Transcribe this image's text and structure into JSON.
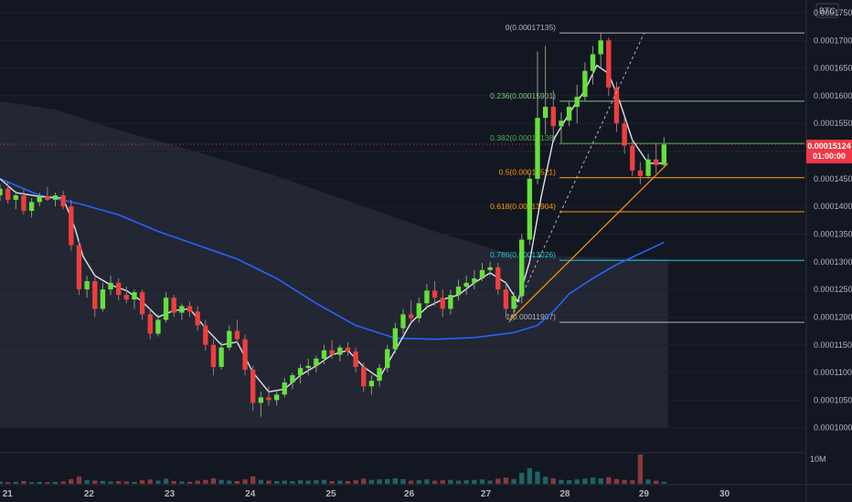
{
  "chart_data": {
    "type": "candlestick",
    "currency_badge": "BTC",
    "y_ticks": [
      "0.00017500",
      "0.00017000",
      "0.00016500",
      "0.00016000",
      "0.00015500",
      "0.00015000",
      "0.00014500",
      "0.00014000",
      "0.00013500",
      "0.00013000",
      "0.00012500",
      "0.00012000",
      "0.00011500",
      "0.00011000",
      "0.00010500",
      "0.00010000"
    ],
    "ylim": [
      9.55e-05,
      0.0001773
    ],
    "x_labels": [
      {
        "label": "21",
        "t": 0.5
      },
      {
        "label": "22",
        "t": 10.8
      },
      {
        "label": "23",
        "t": 21.0
      },
      {
        "label": "24",
        "t": 31.2
      },
      {
        "label": "25",
        "t": 41.4
      },
      {
        "label": "26",
        "t": 51.3
      },
      {
        "label": "27",
        "t": 61.0
      },
      {
        "label": "28",
        "t": 71.0
      },
      {
        "label": "29",
        "t": 81.0
      },
      {
        "label": "30",
        "t": 91.2
      }
    ],
    "xlim": [
      0,
      102
    ],
    "last_price": {
      "label": "0.00015124",
      "countdown": "01:00:00",
      "value": 0.00015124,
      "color": "#f23645"
    },
    "fibonacci": [
      {
        "label": "0(0.00017135)",
        "value": 0.00017135,
        "color": "#b2b5be"
      },
      {
        "label": "0.236(0.00015901)",
        "value": 0.00015901,
        "color": "#81c784"
      },
      {
        "label": "0.382(0.00015138)",
        "value": 0.00015138,
        "color": "#4caf50"
      },
      {
        "label": "0.5(0.00014521)",
        "value": 0.00014521,
        "color": "#ff9800"
      },
      {
        "label": "0.618(0.00013904)",
        "value": 0.00013904,
        "color": "#ff9800"
      },
      {
        "label": "0.786(0.00013026)",
        "value": 0.00013026,
        "color": "#26c6da"
      },
      {
        "label": "1(0.00011907)",
        "value": 0.00011907,
        "color": "#b2b5be"
      }
    ],
    "volume_label": "10M",
    "candles": [
      [
        0.0,
        0.000142,
        0.000144,
        0.000141,
        0.0001432
      ],
      [
        1.0,
        0.0001432,
        0.0001445,
        0.0001405,
        0.0001412
      ],
      [
        2.0,
        0.0001412,
        0.0001428,
        0.0001395,
        0.000142
      ],
      [
        3.0,
        0.000142,
        0.000143,
        0.0001385,
        0.0001392
      ],
      [
        4.0,
        0.0001392,
        0.0001415,
        0.000138,
        0.0001408
      ],
      [
        5.0,
        0.0001408,
        0.0001425,
        0.00014,
        0.0001418
      ],
      [
        6.0,
        0.0001418,
        0.0001435,
        0.000141,
        0.0001412
      ],
      [
        7.0,
        0.0001412,
        0.0001425,
        0.00014,
        0.000142
      ],
      [
        8.0,
        0.000142,
        0.0001428,
        0.0001395,
        0.00014
      ],
      [
        9.0,
        0.00014,
        0.0001412,
        0.000132,
        0.000133
      ],
      [
        10.0,
        0.000133,
        0.000134,
        0.000124,
        0.000125
      ],
      [
        11.0,
        0.000125,
        0.0001275,
        0.0001235,
        0.0001265
      ],
      [
        12.0,
        0.0001265,
        0.0001272,
        0.00012,
        0.0001215
      ],
      [
        13.0,
        0.0001215,
        0.0001262,
        0.000121,
        0.000125
      ],
      [
        14.0,
        0.000125,
        0.0001275,
        0.000124,
        0.0001262
      ],
      [
        15.0,
        0.0001262,
        0.000127,
        0.000123,
        0.000124
      ],
      [
        16.0,
        0.000124,
        0.0001255,
        0.0001225,
        0.0001232
      ],
      [
        17.0,
        0.0001232,
        0.000125,
        0.0001215,
        0.0001245
      ],
      [
        18.0,
        0.0001245,
        0.000125,
        0.0001195,
        0.0001205
      ],
      [
        19.0,
        0.0001205,
        0.0001215,
        0.000116,
        0.000117
      ],
      [
        20.0,
        0.000117,
        0.0001205,
        0.0001165,
        0.0001195
      ],
      [
        21.0,
        0.0001195,
        0.0001245,
        0.000119,
        0.0001235
      ],
      [
        22.0,
        0.0001235,
        0.000124,
        0.00012,
        0.0001208
      ],
      [
        23.0,
        0.0001208,
        0.0001225,
        0.0001195,
        0.000122
      ],
      [
        24.0,
        0.000122,
        0.0001228,
        0.00012,
        0.000121
      ],
      [
        25.0,
        0.000121,
        0.000122,
        0.0001175,
        0.0001185
      ],
      [
        26.0,
        0.0001185,
        0.0001195,
        0.000114,
        0.000115
      ],
      [
        27.0,
        0.000115,
        0.000116,
        0.0001095,
        0.000111
      ],
      [
        28.0,
        0.000111,
        0.0001155,
        0.0001105,
        0.0001145
      ],
      [
        29.0,
        0.0001145,
        0.0001185,
        0.000114,
        0.0001175
      ],
      [
        30.0,
        0.0001175,
        0.0001195,
        0.000115,
        0.000116
      ],
      [
        31.0,
        0.000116,
        0.0001168,
        0.0001095,
        0.0001105
      ],
      [
        32.0,
        0.0001105,
        0.0001112,
        0.000103,
        0.0001045
      ],
      [
        33.0,
        0.0001045,
        0.0001065,
        0.000102,
        0.0001055
      ],
      [
        34.0,
        0.0001055,
        0.0001075,
        0.000104,
        0.000105
      ],
      [
        35.0,
        0.000105,
        0.0001065,
        0.000104,
        0.000106
      ],
      [
        36.0,
        0.000106,
        0.000109,
        0.0001055,
        0.0001082
      ],
      [
        37.0,
        0.0001082,
        0.00011,
        0.000107,
        0.0001095
      ],
      [
        38.0,
        0.0001095,
        0.0001115,
        0.000108,
        0.0001108
      ],
      [
        39.0,
        0.0001108,
        0.0001125,
        0.0001095,
        0.0001112
      ],
      [
        40.0,
        0.0001112,
        0.000113,
        0.00011,
        0.0001125
      ],
      [
        41.0,
        0.0001125,
        0.000115,
        0.0001115,
        0.000114
      ],
      [
        42.0,
        0.000114,
        0.0001158,
        0.0001125,
        0.0001132
      ],
      [
        43.0,
        0.0001132,
        0.000115,
        0.000112,
        0.0001145
      ],
      [
        44.0,
        0.0001145,
        0.0001155,
        0.000113,
        0.0001138
      ],
      [
        45.0,
        0.0001138,
        0.0001145,
        0.00011,
        0.000111
      ],
      [
        46.0,
        0.000111,
        0.0001118,
        0.0001065,
        0.0001075
      ],
      [
        47.0,
        0.0001075,
        0.0001095,
        0.000106,
        0.0001085
      ],
      [
        48.0,
        0.0001085,
        0.0001115,
        0.0001075,
        0.0001108
      ],
      [
        49.0,
        0.0001108,
        0.000115,
        0.00011,
        0.0001142
      ],
      [
        50.0,
        0.0001142,
        0.000119,
        0.0001135,
        0.000118
      ],
      [
        51.0,
        0.000118,
        0.0001215,
        0.000117,
        0.0001205
      ],
      [
        52.0,
        0.0001205,
        0.000123,
        0.000119,
        0.0001198
      ],
      [
        53.0,
        0.0001198,
        0.0001235,
        0.000119,
        0.0001225
      ],
      [
        54.0,
        0.0001225,
        0.000126,
        0.0001215,
        0.0001248
      ],
      [
        55.0,
        0.0001248,
        0.0001265,
        0.000122,
        0.0001235
      ],
      [
        56.0,
        0.0001235,
        0.000125,
        0.00012,
        0.0001215
      ],
      [
        57.0,
        0.0001215,
        0.000125,
        0.0001205,
        0.000124
      ],
      [
        58.0,
        0.000124,
        0.0001268,
        0.000123,
        0.0001255
      ],
      [
        59.0,
        0.0001255,
        0.0001275,
        0.000124,
        0.0001262
      ],
      [
        60.0,
        0.0001262,
        0.0001285,
        0.000125,
        0.000127
      ],
      [
        61.0,
        0.000127,
        0.0001298,
        0.0001265,
        0.0001285
      ],
      [
        62.0,
        0.0001285,
        0.00013,
        0.0001275,
        0.000129
      ],
      [
        63.0,
        0.000129,
        0.0001298,
        0.000124,
        0.000125
      ],
      [
        64.0,
        0.000125,
        0.0001262,
        0.0001198,
        0.0001215
      ],
      [
        65.0,
        0.0001215,
        0.0001245,
        0.0001195,
        0.0001238
      ],
      [
        66.0,
        0.0001238,
        0.000135,
        0.0001225,
        0.000134
      ],
      [
        67.0,
        0.000134,
        0.000146,
        0.000133,
        0.000145
      ],
      [
        68.0,
        0.000145,
        0.000168,
        0.000144,
        0.000156
      ],
      [
        69.0,
        0.000156,
        0.000169,
        0.000153,
        0.000158
      ],
      [
        70.0,
        0.000158,
        0.000161,
        0.000152,
        0.0001545
      ],
      [
        71.0,
        0.0001545,
        0.000157,
        0.0001515,
        0.0001555
      ],
      [
        72.0,
        0.0001555,
        0.000159,
        0.0001545,
        0.000158
      ],
      [
        73.0,
        0.000158,
        0.000162,
        0.000155,
        0.0001598
      ],
      [
        74.0,
        0.0001598,
        0.000166,
        0.000159,
        0.0001645
      ],
      [
        75.0,
        0.0001645,
        0.000169,
        0.000162,
        0.0001675
      ],
      [
        76.0,
        0.0001675,
        0.0001713,
        0.000165,
        0.00017
      ],
      [
        77.0,
        0.00017,
        0.0001705,
        0.00016,
        0.0001615
      ],
      [
        78.0,
        0.0001615,
        0.0001625,
        0.0001535,
        0.000155
      ],
      [
        79.0,
        0.000155,
        0.000156,
        0.0001495,
        0.000151
      ],
      [
        80.0,
        0.000151,
        0.000152,
        0.0001455,
        0.0001465
      ],
      [
        81.0,
        0.0001465,
        0.000148,
        0.000144,
        0.0001455
      ],
      [
        82.0,
        0.0001455,
        0.0001495,
        0.000145,
        0.0001485
      ],
      [
        83.0,
        0.0001485,
        0.0001515,
        0.000146,
        0.0001475
      ],
      [
        84.0,
        0.0001475,
        0.0001525,
        0.000147,
        0.0001512
      ]
    ],
    "volumes": [
      0.6,
      0.4,
      0.5,
      0.7,
      0.4,
      0.5,
      0.4,
      0.5,
      0.6,
      1.2,
      1.8,
      0.9,
      0.8,
      0.7,
      0.6,
      0.7,
      0.6,
      0.5,
      0.9,
      1.1,
      0.8,
      1.3,
      0.7,
      0.6,
      0.5,
      0.8,
      1.0,
      1.4,
      1.0,
      0.8,
      0.7,
      1.1,
      1.9,
      1.0,
      0.8,
      0.7,
      0.8,
      0.7,
      0.9,
      0.8,
      0.9,
      1.0,
      0.7,
      0.8,
      0.7,
      0.9,
      1.3,
      1.0,
      1.1,
      1.2,
      1.4,
      1.2,
      0.8,
      0.9,
      1.1,
      0.8,
      0.9,
      1.0,
      0.8,
      0.9,
      1.0,
      1.1,
      0.8,
      1.3,
      1.6,
      1.2,
      2.8,
      4.0,
      3.1,
      1.8,
      1.4,
      1.0,
      0.9,
      1.1,
      1.3,
      1.6,
      1.4,
      1.7,
      1.2,
      1.0,
      0.9,
      7.5,
      1.1,
      0.8,
      0.5
    ],
    "ma_short": [
      [
        0,
        0.000145
      ],
      [
        2,
        0.0001425
      ],
      [
        5,
        0.0001418
      ],
      [
        8,
        0.0001415
      ],
      [
        9.5,
        0.000136
      ],
      [
        10.5,
        0.000131
      ],
      [
        12,
        0.0001275
      ],
      [
        14,
        0.0001258
      ],
      [
        16,
        0.0001248
      ],
      [
        18,
        0.0001228
      ],
      [
        20,
        0.00012
      ],
      [
        22,
        0.0001212
      ],
      [
        24,
        0.0001215
      ],
      [
        26,
        0.000118
      ],
      [
        28,
        0.000115
      ],
      [
        30,
        0.0001155
      ],
      [
        32,
        0.00011
      ],
      [
        34,
        0.0001065
      ],
      [
        36,
        0.000107
      ],
      [
        38,
        0.0001095
      ],
      [
        40,
        0.0001112
      ],
      [
        42,
        0.0001132
      ],
      [
        44,
        0.000114
      ],
      [
        46,
        0.000111
      ],
      [
        48,
        0.000109
      ],
      [
        50,
        0.000114
      ],
      [
        52,
        0.000119
      ],
      [
        54,
        0.0001218
      ],
      [
        56,
        0.0001232
      ],
      [
        58,
        0.000124
      ],
      [
        60,
        0.0001262
      ],
      [
        62,
        0.000128
      ],
      [
        64,
        0.0001262
      ],
      [
        65.5,
        0.0001228
      ],
      [
        67,
        0.00013
      ],
      [
        68.5,
        0.000142
      ],
      [
        70,
        0.000152
      ],
      [
        72,
        0.0001568
      ],
      [
        74,
        0.000161
      ],
      [
        75.5,
        0.0001655
      ],
      [
        77,
        0.000164
      ],
      [
        78.5,
        0.0001585
      ],
      [
        80,
        0.000152
      ],
      [
        82,
        0.0001478
      ],
      [
        84,
        0.0001478
      ]
    ],
    "ma_long": [
      [
        0,
        0.000145
      ],
      [
        5,
        0.000142
      ],
      [
        10,
        0.0001405
      ],
      [
        15,
        0.0001385
      ],
      [
        20,
        0.0001355
      ],
      [
        25,
        0.000133
      ],
      [
        30,
        0.0001305
      ],
      [
        35,
        0.000127
      ],
      [
        40,
        0.0001225
      ],
      [
        45,
        0.0001185
      ],
      [
        50,
        0.0001162
      ],
      [
        55,
        0.000116
      ],
      [
        60,
        0.0001163
      ],
      [
        65,
        0.0001172
      ],
      [
        68,
        0.0001185
      ],
      [
        70,
        0.000121
      ],
      [
        72,
        0.0001242
      ],
      [
        75,
        0.000127
      ],
      [
        78,
        0.0001295
      ],
      [
        81,
        0.0001315
      ],
      [
        84,
        0.0001335
      ]
    ],
    "ribbon_top": [
      [
        0,
        0.000159
      ],
      [
        7,
        0.0001575
      ],
      [
        15,
        0.0001538
      ],
      [
        25,
        0.0001498
      ],
      [
        35,
        0.0001455
      ],
      [
        45,
        0.0001405
      ],
      [
        55,
        0.0001355
      ],
      [
        65,
        0.0001312
      ],
      [
        84.5,
        0.0001305
      ]
    ],
    "ribbon_bottom": 0.0001
  }
}
